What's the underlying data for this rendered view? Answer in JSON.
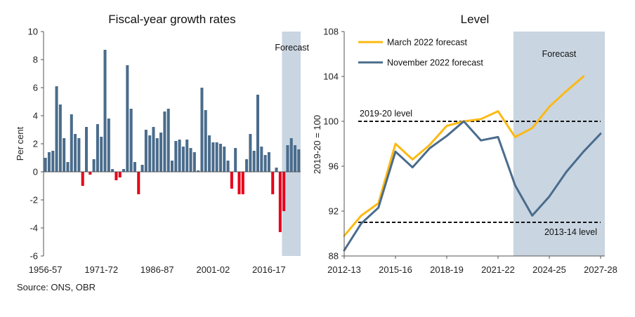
{
  "source": "Source: ONS, OBR",
  "chart_data": [
    {
      "type": "bar",
      "title": "Fiscal-year growth rates",
      "ylabel": "Per cent",
      "ylim": [
        -6,
        10
      ],
      "yticks": [
        10,
        8,
        6,
        4,
        2,
        0,
        -2,
        -4,
        -6
      ],
      "xtick_labels": [
        "1956-57",
        "1971-72",
        "1986-87",
        "2001-02",
        "2016-17"
      ],
      "forecast_label": "Forecast",
      "forecast_start_index": 64,
      "positive_color": "#4a6c8c",
      "negative_color": "#e8001a",
      "forecast_shade": "#c9d5e1",
      "values": [
        1.0,
        1.4,
        1.5,
        6.1,
        4.8,
        2.4,
        0.7,
        4.1,
        2.7,
        2.4,
        -1.0,
        3.2,
        -0.2,
        0.9,
        3.4,
        2.5,
        8.7,
        3.8,
        0.2,
        -0.6,
        -0.4,
        0.2,
        7.6,
        4.5,
        0.7,
        -1.6,
        0.5,
        3.0,
        2.6,
        3.2,
        2.4,
        2.8,
        4.3,
        4.5,
        0.8,
        2.2,
        2.3,
        1.8,
        2.3,
        1.7,
        1.4,
        0.1,
        6.0,
        4.4,
        2.6,
        2.1,
        2.1,
        2.0,
        1.8,
        0.8,
        -1.2,
        1.7,
        -1.6,
        -1.6,
        0.9,
        2.7,
        1.5,
        5.5,
        1.8,
        1.2,
        1.4,
        -1.6,
        0.3,
        -4.3,
        -2.8,
        1.9,
        2.4,
        1.9,
        1.6
      ]
    },
    {
      "type": "line",
      "title": "Level",
      "ylabel": "2019-20 = 100",
      "ylim": [
        88,
        108
      ],
      "yticks": [
        108,
        104,
        100,
        96,
        92,
        88
      ],
      "x": [
        "2012-13",
        "2013-14",
        "2014-15",
        "2015-16",
        "2016-17",
        "2017-18",
        "2018-19",
        "2019-20",
        "2020-21",
        "2021-22",
        "2022-23",
        "2023-24",
        "2024-25",
        "2025-26",
        "2026-27",
        "2027-28"
      ],
      "xtick_labels": [
        "2012-13",
        "2015-16",
        "2018-19",
        "2021-22",
        "2024-25",
        "2027-28"
      ],
      "forecast_label": "Forecast",
      "forecast_start": "2022-23",
      "forecast_shade": "#c9d5e1",
      "series": [
        {
          "name": "March 2022 forecast",
          "color": "#fdb913",
          "values": [
            89.8,
            91.6,
            92.7,
            98.0,
            96.6,
            97.9,
            99.6,
            100.0,
            100.2,
            100.9,
            98.6,
            99.4,
            101.3,
            102.7,
            104.0,
            null
          ]
        },
        {
          "name": "November 2022 forecast",
          "color": "#4a6c8c",
          "values": [
            88.5,
            90.9,
            92.3,
            97.3,
            95.9,
            97.6,
            98.7,
            100.0,
            98.3,
            98.6,
            94.3,
            91.6,
            93.3,
            95.5,
            97.3,
            98.9
          ]
        }
      ],
      "reference_lines": [
        {
          "label": "2019-20 level",
          "value": 100
        },
        {
          "label": "2013-14 level",
          "value": 91
        }
      ]
    }
  ]
}
